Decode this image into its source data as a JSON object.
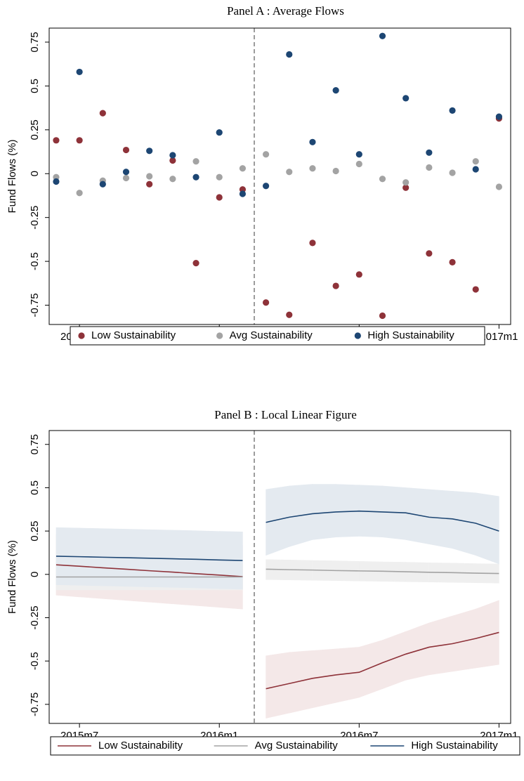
{
  "chart_data": [
    {
      "type": "scatter",
      "title": "Panel A : Average Flows",
      "y_label": "Fund Flows (%)",
      "x": [
        665,
        666,
        667,
        668,
        669,
        670,
        671,
        672,
        673,
        674,
        675,
        676,
        677,
        678,
        679,
        680,
        681,
        682,
        683,
        684
      ],
      "series": [
        {
          "name": "Low Sustainability",
          "color": "#8e3239",
          "values": [
            0.19,
            0.19,
            0.345,
            0.135,
            -0.06,
            0.075,
            -0.51,
            -0.135,
            -0.09,
            -0.735,
            -0.805,
            -0.395,
            -0.64,
            -0.575,
            -0.81,
            -0.08,
            -0.455,
            -0.505,
            -0.66,
            0.315
          ]
        },
        {
          "name": "Avg Sustainability",
          "color": "#a3a3a3",
          "values": [
            -0.02,
            -0.11,
            -0.04,
            -0.025,
            -0.015,
            -0.03,
            0.07,
            -0.02,
            0.03,
            0.11,
            0.01,
            0.03,
            0.015,
            0.055,
            -0.03,
            -0.05,
            0.035,
            0.005,
            0.07,
            -0.075
          ]
        },
        {
          "name": "High Sustainability",
          "color": "#1d4673",
          "values": [
            -0.045,
            0.58,
            -0.06,
            0.01,
            0.13,
            0.105,
            -0.02,
            0.235,
            -0.115,
            -0.07,
            0.68,
            0.18,
            0.475,
            0.11,
            0.785,
            0.43,
            0.12,
            0.36,
            0.025,
            0.325
          ]
        }
      ],
      "xlim": [
        664.7,
        684.5
      ],
      "ylim": [
        -0.86,
        0.83
      ],
      "xticks": [
        {
          "value": 666,
          "label": "2015m7"
        },
        {
          "value": 672,
          "label": "2016m1"
        },
        {
          "value": 678,
          "label": "2016m7"
        },
        {
          "value": 684,
          "label": "2017m1"
        }
      ],
      "yticks": [
        0.75,
        0.5,
        0.25,
        0,
        -0.25,
        -0.5,
        -0.75
      ],
      "xline": 673.5,
      "grid": false
    },
    {
      "type": "line",
      "title": "Panel B : Local Linear Figure",
      "y_label": "Fund Flows (%)",
      "x": [
        665,
        666,
        667,
        668,
        669,
        670,
        671,
        672,
        673,
        null,
        674,
        675,
        676,
        677,
        678,
        679,
        680,
        681,
        682,
        683,
        684
      ],
      "series": [
        {
          "name": "Low Sustainability",
          "color": "#8e3239",
          "band_color": "#f4e8e8",
          "values": [
            0.055,
            0.047,
            0.038,
            0.03,
            0.021,
            0.013,
            0.004,
            -0.004,
            -0.013,
            null,
            -0.66,
            -0.63,
            -0.6,
            -0.58,
            -0.565,
            -0.51,
            -0.46,
            -0.42,
            -0.4,
            -0.37,
            -0.335
          ],
          "upper": [
            0.23,
            0.22,
            0.21,
            0.21,
            0.2,
            0.19,
            0.19,
            0.18,
            0.17,
            null,
            -0.47,
            -0.45,
            -0.44,
            -0.43,
            -0.42,
            -0.38,
            -0.33,
            -0.28,
            -0.24,
            -0.2,
            -0.15
          ],
          "lower": [
            -0.12,
            -0.13,
            -0.14,
            -0.15,
            -0.16,
            -0.17,
            -0.18,
            -0.19,
            -0.2,
            null,
            -0.83,
            -0.8,
            -0.77,
            -0.74,
            -0.71,
            -0.66,
            -0.61,
            -0.58,
            -0.56,
            -0.54,
            -0.52
          ]
        },
        {
          "name": "Avg Sustainability",
          "color": "#a3a3a3",
          "band_color": "#efefef",
          "values": [
            -0.015,
            -0.015,
            -0.015,
            -0.015,
            -0.015,
            -0.015,
            -0.015,
            -0.015,
            -0.015,
            null,
            0.03,
            0.027,
            0.025,
            0.022,
            0.02,
            0.018,
            0.015,
            0.012,
            0.01,
            0.007,
            0.005
          ],
          "upper": [
            0.06,
            0.06,
            0.06,
            0.06,
            0.06,
            0.06,
            0.06,
            0.06,
            0.06,
            null,
            0.085,
            0.083,
            0.08,
            0.078,
            0.075,
            0.072,
            0.07,
            0.067,
            0.065,
            0.062,
            0.06
          ],
          "lower": [
            -0.09,
            -0.09,
            -0.09,
            -0.09,
            -0.09,
            -0.09,
            -0.09,
            -0.09,
            -0.09,
            null,
            -0.03,
            -0.032,
            -0.034,
            -0.036,
            -0.038,
            -0.04,
            -0.042,
            -0.044,
            -0.046,
            -0.048,
            -0.05
          ]
        },
        {
          "name": "High Sustainability",
          "color": "#1d4673",
          "band_color": "#e4eaf0",
          "values": [
            0.105,
            0.102,
            0.099,
            0.096,
            0.093,
            0.09,
            0.087,
            0.083,
            0.08,
            null,
            0.3,
            0.33,
            0.35,
            0.36,
            0.365,
            0.36,
            0.355,
            0.33,
            0.32,
            0.295,
            0.25
          ],
          "upper": [
            0.27,
            0.267,
            0.264,
            0.261,
            0.258,
            0.255,
            0.252,
            0.248,
            0.245,
            null,
            0.49,
            0.51,
            0.52,
            0.52,
            0.515,
            0.51,
            0.5,
            0.49,
            0.48,
            0.47,
            0.45
          ],
          "lower": [
            -0.06,
            -0.063,
            -0.066,
            -0.069,
            -0.072,
            -0.075,
            -0.078,
            -0.082,
            -0.085,
            null,
            0.11,
            0.16,
            0.2,
            0.215,
            0.22,
            0.215,
            0.2,
            0.175,
            0.15,
            0.11,
            0.06
          ]
        }
      ],
      "xlim": [
        664.7,
        684.5
      ],
      "ylim": [
        -0.86,
        0.83
      ],
      "xticks": [
        {
          "value": 666,
          "label": "2015m7"
        },
        {
          "value": 672,
          "label": "2016m1"
        },
        {
          "value": 678,
          "label": "2016m7"
        },
        {
          "value": 684,
          "label": "2017m1"
        }
      ],
      "yticks": [
        0.75,
        0.5,
        0.25,
        0,
        -0.25,
        -0.5,
        -0.75
      ],
      "xline": 673.5,
      "grid": false
    }
  ]
}
